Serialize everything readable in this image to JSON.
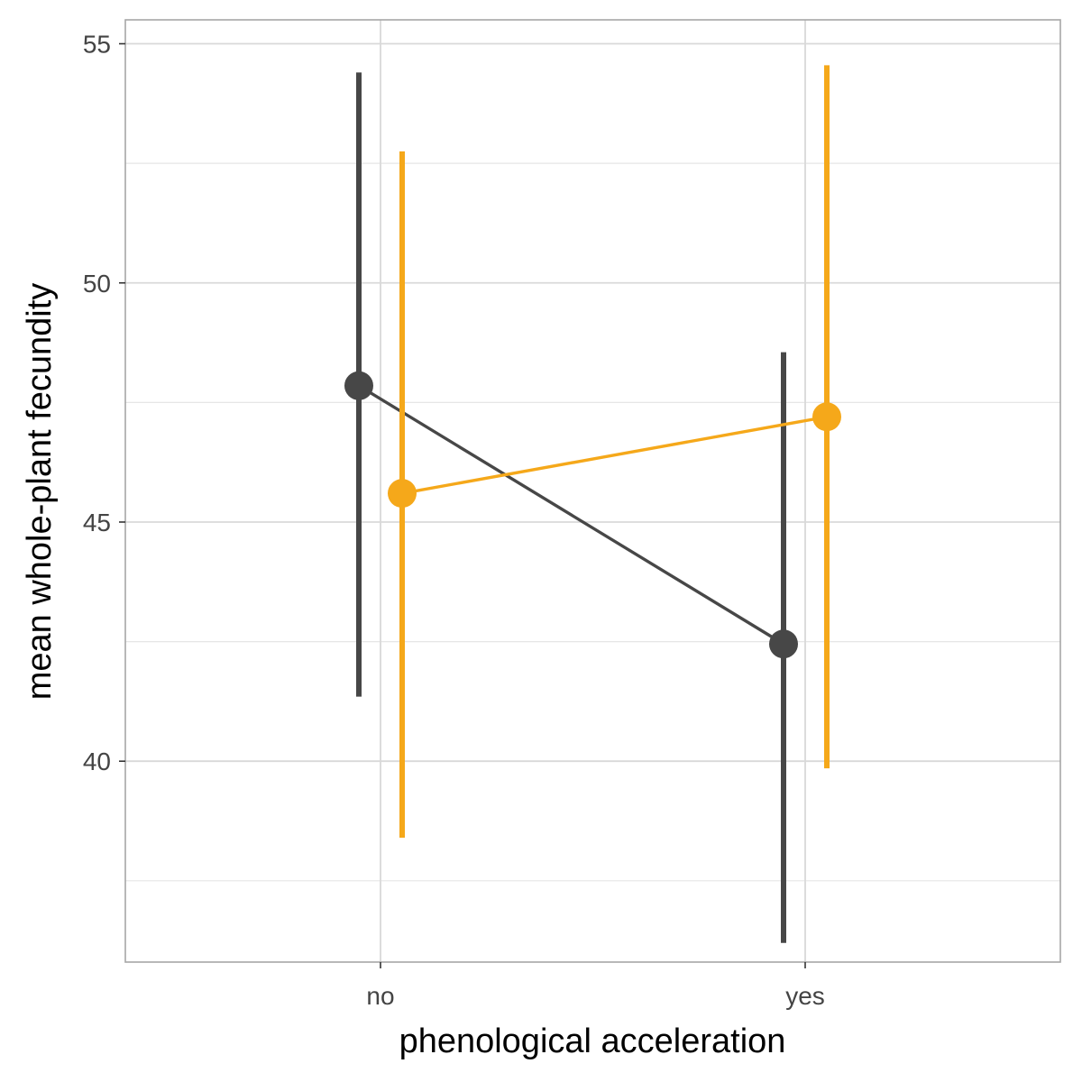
{
  "chart_data": {
    "type": "line",
    "title": "",
    "xlabel": "phenological acceleration",
    "ylabel": "mean whole-plant fecundity",
    "categories": [
      "no",
      "yes"
    ],
    "ylim": [
      35.8,
      55.5
    ],
    "y_ticks": [
      40,
      45,
      50,
      55
    ],
    "y_minor_ticks": [
      37.5,
      42.5,
      47.5,
      52.5
    ],
    "grid": true,
    "legend": "none",
    "series": [
      {
        "color": "#474747",
        "values": [
          47.85,
          42.45
        ],
        "lower": [
          41.35,
          36.2
        ],
        "upper": [
          54.4,
          48.55
        ]
      },
      {
        "color": "#F5A81A",
        "values": [
          45.6,
          47.2
        ],
        "lower": [
          38.4,
          39.85
        ],
        "upper": [
          52.75,
          54.55
        ]
      }
    ]
  }
}
